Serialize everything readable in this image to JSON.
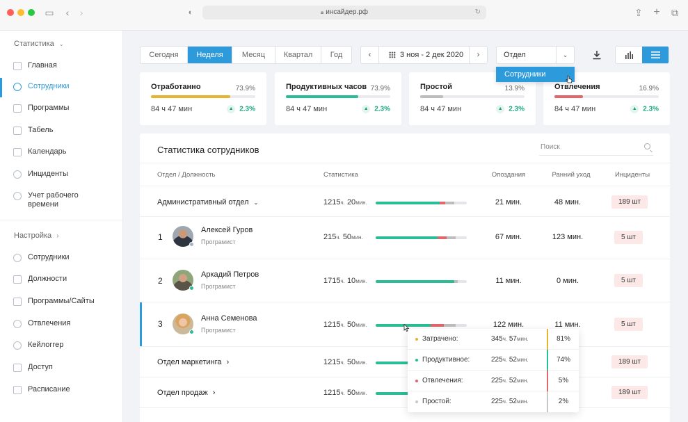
{
  "browser": {
    "url": "инсайдер.рф"
  },
  "sidebar": {
    "section1": "Статистика",
    "items1": [
      {
        "label": "Главная"
      },
      {
        "label": "Сотрудники"
      },
      {
        "label": "Программы"
      },
      {
        "label": "Табель"
      },
      {
        "label": "Календарь"
      },
      {
        "label": "Инциденты"
      },
      {
        "label": "Учет рабочего времени"
      }
    ],
    "section2": "Настройка",
    "items2": [
      {
        "label": "Сотрудники"
      },
      {
        "label": "Должности"
      },
      {
        "label": "Программы/Сайты"
      },
      {
        "label": "Отвлечения"
      },
      {
        "label": "Кейлоггер"
      },
      {
        "label": "Доступ"
      },
      {
        "label": "Расписание"
      }
    ]
  },
  "toolbar": {
    "tabs": [
      "Сегодня",
      "Неделя",
      "Месяц",
      "Квартал",
      "Год"
    ],
    "active_tab": "Неделя",
    "date_range": "3 ноя - 2 дек 2020",
    "select_value": "Отдел",
    "dropdown_option": "Сотрудники"
  },
  "cards": [
    {
      "title": "Отработанно",
      "percent": "73.9%",
      "hours": "84 ч 47 мин",
      "delta": "2.3%",
      "fill": 0.76,
      "color": "#e6b430"
    },
    {
      "title": "Продуктивных часов",
      "percent": "73.9%",
      "hours": "84 ч 47 мин",
      "delta": "2.3%",
      "fill": 0.69,
      "color": "#2bbd95"
    },
    {
      "title": "Простой",
      "percent": "13.9%",
      "hours": "84 ч 47 мин",
      "delta": "2.3%",
      "fill": 0.22,
      "color": "#bdbdbd"
    },
    {
      "title": "Отвлечения",
      "percent": "16.9%",
      "hours": "84 ч 47 мин",
      "delta": "2.3%",
      "fill": 0.27,
      "color": "#e0676b"
    }
  ],
  "table": {
    "title": "Статистика сотрудников",
    "search_placeholder": "Поиск",
    "headers": {
      "dept": "Отдел / Должность",
      "stats": "Статистика",
      "late": "Опоздания",
      "early": "Ранний уход",
      "incidents": "Инциденты"
    },
    "unit_h": "ч.",
    "unit_min": "мин.",
    "rows": [
      {
        "type": "dept",
        "name": "Административный отдел",
        "hours": "1215",
        "mins": "20",
        "late": "21 мин.",
        "early": "48 мин.",
        "incidents": "189 шт"
      },
      {
        "type": "person",
        "num": "1",
        "name": "Алексей Гуров",
        "role": "Програмист",
        "hours": "215",
        "mins": "50",
        "late": "67 мин.",
        "early": "123 мин.",
        "incidents": "5 шт"
      },
      {
        "type": "person",
        "num": "2",
        "name": "Аркадий  Петров",
        "role": "Програмист",
        "hours": "1715",
        "mins": "10",
        "late": "11 мин.",
        "early": "0 мин.",
        "incidents": "5 шт"
      },
      {
        "type": "person",
        "num": "3",
        "name": "Анна Семенова",
        "role": "Програмист",
        "hours": "1215",
        "mins": "50",
        "late": "122 мин.",
        "early": "11 мин.",
        "incidents": "5 шт"
      },
      {
        "type": "dept",
        "name": "Отдел маркетинга",
        "hours": "1215",
        "mins": "50",
        "incidents": "189 шт"
      },
      {
        "type": "dept",
        "name": "Отдел продаж",
        "hours": "1215",
        "mins": "50",
        "incidents": "189 шт"
      }
    ]
  },
  "tooltip": [
    {
      "label": "Затрачено:",
      "hours": "345",
      "mins": "57",
      "percent": "81%",
      "color": "#e6b430"
    },
    {
      "label": "Продуктивное:",
      "hours": "225",
      "mins": "52",
      "percent": "74%",
      "color": "#2bbd95"
    },
    {
      "label": "Отвлечения:",
      "hours": "225",
      "mins": "52",
      "percent": "5%",
      "color": "#e0676b"
    },
    {
      "label": "Простой:",
      "hours": "225",
      "mins": "52",
      "percent": "2%",
      "color": "#c8c8c8"
    }
  ]
}
